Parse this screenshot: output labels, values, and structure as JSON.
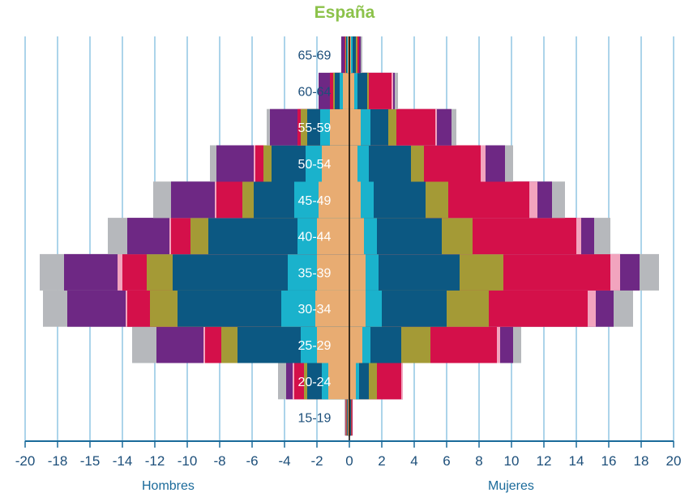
{
  "chart_data": {
    "type": "bar",
    "orientation": "horizontal-stacked-population-pyramid",
    "title": "España",
    "xlim": [
      -20,
      20
    ],
    "x_ticks": [
      "-20",
      "-18",
      "-15",
      "-14",
      "-12",
      "-10",
      "-8",
      "-6",
      "-4",
      "-2",
      "0",
      "2",
      "4",
      "6",
      "8",
      "10",
      "12",
      "14",
      "16",
      "18",
      "20"
    ],
    "left_side_label": "Hombres",
    "right_side_label": "Mujeres",
    "grid": true,
    "categories": [
      "15-19",
      "20-24",
      "25-29",
      "30-34",
      "35-39",
      "40-44",
      "45-49",
      "50-54",
      "55-59",
      "60-64",
      "65-69"
    ],
    "colors": [
      "#e8ac72",
      "#1ab2cc",
      "#0c5882",
      "#a49a36",
      "#d4104a",
      "#f2a4be",
      "#6e2884",
      "#b6b8bc"
    ],
    "male_cumulative": [
      [
        0.1,
        0.1,
        0.15,
        0.18,
        0.23,
        0.23,
        0.23,
        0.3
      ],
      [
        1.3,
        1.7,
        2.6,
        2.8,
        3.4,
        3.5,
        3.9,
        4.4
      ],
      [
        2.0,
        3.0,
        6.9,
        7.9,
        8.9,
        9.0,
        11.9,
        13.4
      ],
      [
        2.1,
        4.2,
        10.6,
        12.3,
        13.7,
        13.8,
        17.4,
        18.9
      ],
      [
        2.0,
        3.8,
        10.9,
        12.5,
        14.0,
        14.3,
        17.6,
        19.1
      ],
      [
        2.0,
        3.2,
        8.7,
        9.8,
        11.0,
        11.1,
        13.7,
        14.9
      ],
      [
        1.9,
        3.4,
        5.9,
        6.6,
        8.2,
        8.3,
        11.0,
        12.1
      ],
      [
        1.7,
        2.7,
        4.8,
        5.3,
        5.8,
        5.9,
        8.2,
        8.6
      ],
      [
        1.2,
        1.8,
        2.6,
        3.0,
        3.2,
        3.2,
        4.9,
        5.1
      ],
      [
        0.4,
        0.6,
        0.9,
        1.0,
        1.2,
        1.2,
        1.9,
        1.9
      ],
      [
        0.1,
        0.15,
        0.2,
        0.25,
        0.3,
        0.3,
        0.5,
        0.5
      ]
    ],
    "female_cumulative": [
      [
        0.05,
        0.05,
        0.1,
        0.12,
        0.18,
        0.18,
        0.2,
        0.2
      ],
      [
        0.4,
        0.6,
        1.2,
        1.7,
        3.2,
        3.3,
        3.3,
        3.3
      ],
      [
        0.8,
        1.3,
        3.2,
        5.0,
        9.1,
        9.3,
        10.1,
        10.6
      ],
      [
        1.0,
        2.0,
        6.0,
        8.6,
        14.7,
        15.2,
        16.3,
        17.5
      ],
      [
        1.0,
        1.8,
        6.8,
        9.5,
        16.1,
        16.7,
        17.9,
        19.1
      ],
      [
        0.9,
        1.7,
        5.7,
        7.6,
        14.0,
        14.3,
        15.1,
        16.1
      ],
      [
        0.7,
        1.5,
        4.7,
        6.1,
        11.1,
        11.6,
        12.5,
        13.3
      ],
      [
        0.5,
        1.2,
        3.8,
        4.6,
        8.1,
        8.4,
        9.6,
        10.1
      ],
      [
        0.7,
        1.3,
        2.4,
        2.9,
        5.3,
        5.4,
        6.3,
        6.6
      ],
      [
        0.3,
        0.5,
        1.1,
        1.2,
        2.6,
        2.7,
        2.8,
        3.0
      ],
      [
        0.1,
        0.2,
        0.4,
        0.5,
        0.6,
        0.6,
        0.7,
        0.8
      ]
    ]
  }
}
